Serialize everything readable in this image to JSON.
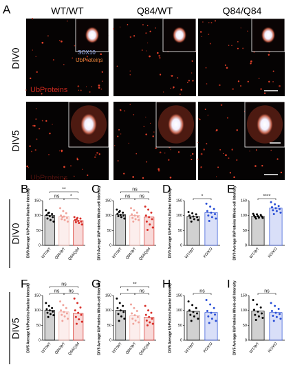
{
  "panel_a": {
    "letter": "A",
    "columns": [
      "WT/WT",
      "Q84/WT",
      "Q84/Q84"
    ],
    "rows": [
      "DIV0",
      "DIV5"
    ],
    "inset_labels": [
      "SOX10",
      "UbProteins"
    ],
    "channel_label": "UbProteins",
    "channel_label_faint": "UbProteins"
  },
  "chart_rows": [
    "DIV0",
    "DIV5"
  ],
  "chart_data": [
    {
      "type": "bar",
      "panel": "B",
      "ylabel": "DIV0 Average UbProteins Nuclear Intensity",
      "categories": [
        "WT/WT",
        "Q84/WT",
        "Q84/Q84"
      ],
      "colors": [
        "#000000",
        "#f0a39b",
        "#d8302a"
      ],
      "values": [
        100,
        97,
        83
      ],
      "points": [
        [
          118,
          110,
          105,
          102,
          98,
          95,
          90,
          85,
          80,
          108
        ],
        [
          125,
          115,
          108,
          100,
          97,
          92,
          88,
          85,
          80,
          95
        ],
        [
          95,
          92,
          90,
          85,
          82,
          80,
          78,
          75,
          70,
          88
        ]
      ],
      "annotations": [
        {
          "text": "ns",
          "between": [
            0,
            1
          ]
        },
        {
          "text": "**",
          "between": [
            0,
            2
          ]
        },
        {
          "text": "*",
          "between": [
            1,
            2
          ]
        }
      ],
      "ylim": [
        0,
        150
      ],
      "yticks": [
        0,
        50,
        100,
        150
      ]
    },
    {
      "type": "bar",
      "panel": "C",
      "ylabel": "DIV0 Average UbProteins Whole-cell Intensity",
      "categories": [
        "WT/WT",
        "Q84/WT",
        "Q84/Q84"
      ],
      "colors": [
        "#000000",
        "#f0a39b",
        "#d8302a"
      ],
      "values": [
        103,
        100,
        95
      ],
      "points": [
        [
          120,
          115,
          110,
          106,
          102,
          100,
          98,
          95,
          90,
          112
        ],
        [
          125,
          118,
          110,
          104,
          100,
          96,
          92,
          88,
          85,
          80
        ],
        [
          130,
          120,
          110,
          100,
          95,
          88,
          80,
          70,
          60,
          52
        ]
      ],
      "annotations": [
        {
          "text": "ns",
          "between": [
            0,
            1
          ]
        },
        {
          "text": "ns",
          "between": [
            0,
            2
          ]
        },
        {
          "text": "ns",
          "between": [
            1,
            2
          ]
        }
      ],
      "ylim": [
        0,
        150
      ],
      "yticks": [
        0,
        50,
        100,
        150
      ]
    },
    {
      "type": "bar",
      "panel": "D",
      "ylabel": "DIV0 Average UbProteins Nuclear Intensity",
      "categories": [
        "WT/WT",
        "KO/KO"
      ],
      "colors": [
        "#000000",
        "#2a4fd6"
      ],
      "values": [
        97,
        110
      ],
      "points": [
        [
          112,
          108,
          104,
          100,
          97,
          95,
          92,
          88,
          85,
          80
        ],
        [
          140,
          130,
          122,
          115,
          110,
          105,
          100,
          95,
          90,
          82
        ]
      ],
      "annotations": [
        {
          "text": "*",
          "between": [
            0,
            1
          ]
        }
      ],
      "ylim": [
        0,
        150
      ],
      "yticks": [
        0,
        50,
        100,
        150
      ]
    },
    {
      "type": "bar",
      "panel": "E",
      "ylabel": "DIV0 Average UbProteins Whole-cell Intensity",
      "categories": [
        "WT/WT",
        "KO/KO"
      ],
      "colors": [
        "#000000",
        "#2a4fd6"
      ],
      "values": [
        98,
        125
      ],
      "points": [
        [
          106,
          104,
          102,
          100,
          98,
          97,
          95,
          93,
          92,
          90
        ],
        [
          145,
          138,
          132,
          128,
          125,
          122,
          118,
          115,
          110,
          105
        ]
      ],
      "annotations": [
        {
          "text": "****",
          "between": [
            0,
            1
          ]
        }
      ],
      "ylim": [
        0,
        150
      ],
      "yticks": [
        0,
        50,
        100,
        150
      ]
    },
    {
      "type": "bar",
      "panel": "F",
      "ylabel": "DIV5 Average UbProteins Nuclear Intensity",
      "categories": [
        "WT/WT",
        "Q84/WT",
        "Q84/Q84"
      ],
      "colors": [
        "#000000",
        "#f0a39b",
        "#d8302a"
      ],
      "values": [
        100,
        95,
        90
      ],
      "points": [
        [
          125,
          115,
          108,
          104,
          100,
          96,
          92,
          88,
          84,
          78
        ],
        [
          130,
          118,
          108,
          100,
          95,
          90,
          85,
          80,
          72,
          65
        ],
        [
          140,
          125,
          110,
          100,
          92,
          85,
          78,
          70,
          62,
          55
        ]
      ],
      "annotations": [
        {
          "text": "ns",
          "between": [
            0,
            1
          ]
        },
        {
          "text": "ns",
          "between": [
            0,
            2
          ]
        },
        {
          "text": "ns",
          "between": [
            1,
            2
          ]
        }
      ],
      "ylim": [
        0,
        150
      ],
      "yticks": [
        0,
        50,
        100,
        150
      ]
    },
    {
      "type": "bar",
      "panel": "G",
      "ylabel": "DIV5 Average UbProteins Whole-cell Intensity",
      "categories": [
        "WT/WT",
        "Q84/WT",
        "Q84/Q84"
      ],
      "colors": [
        "#000000",
        "#f0a39b",
        "#d8302a"
      ],
      "values": [
        100,
        82,
        77
      ],
      "points": [
        [
          140,
          125,
          115,
          108,
          100,
          95,
          88,
          80,
          72,
          65
        ],
        [
          120,
          108,
          98,
          90,
          84,
          78,
          72,
          66,
          60,
          55
        ],
        [
          115,
          100,
          92,
          85,
          78,
          72,
          66,
          60,
          55,
          50
        ]
      ],
      "annotations": [
        {
          "text": "*",
          "between": [
            0,
            1
          ]
        },
        {
          "text": "**",
          "between": [
            0,
            2
          ]
        },
        {
          "text": "ns",
          "between": [
            1,
            2
          ]
        }
      ],
      "ylim": [
        0,
        150
      ],
      "yticks": [
        0,
        50,
        100,
        150
      ]
    },
    {
      "type": "bar",
      "panel": "H",
      "ylabel": "DIV5 Average UbProteins Nuclear Intensity",
      "categories": [
        "WT/WT",
        "KO/KO"
      ],
      "colors": [
        "#000000",
        "#2a4fd6"
      ],
      "values": [
        97,
        93
      ],
      "points": [
        [
          130,
          118,
          108,
          100,
          95,
          90,
          85,
          80,
          72,
          65
        ],
        [
          135,
          120,
          108,
          98,
          92,
          86,
          80,
          72,
          65,
          58
        ]
      ],
      "annotations": [
        {
          "text": "ns",
          "between": [
            0,
            1
          ]
        }
      ],
      "ylim": [
        0,
        150
      ],
      "yticks": [
        0,
        50,
        100,
        150
      ]
    },
    {
      "type": "bar",
      "panel": "I",
      "ylabel": "DIV5 Average UbProteins Whole-cell Intensity",
      "categories": [
        "WT/WT",
        "KO/KO"
      ],
      "colors": [
        "#000000",
        "#2a4fd6"
      ],
      "values": [
        98,
        93
      ],
      "points": [
        [
          135,
          120,
          110,
          102,
          96,
          90,
          85,
          80,
          75,
          68
        ],
        [
          125,
          115,
          105,
          98,
          92,
          88,
          82,
          78,
          72,
          65
        ]
      ],
      "annotations": [
        {
          "text": "ns",
          "between": [
            0,
            1
          ]
        }
      ],
      "ylim": [
        0,
        150
      ],
      "yticks": [
        0,
        50,
        100,
        150
      ]
    }
  ]
}
